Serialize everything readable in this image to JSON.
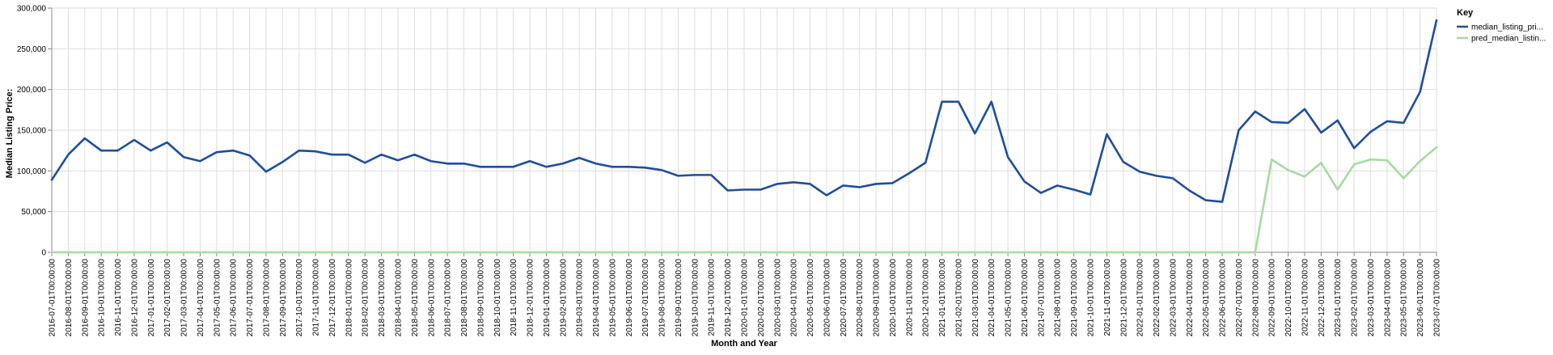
{
  "chart_data": {
    "type": "line",
    "xlabel": "Month and Year",
    "ylabel": "Median Listing Price:",
    "ylim": [
      0,
      300000
    ],
    "yticks": [
      0,
      50000,
      100000,
      150000,
      200000,
      250000,
      300000
    ],
    "ytick_labels": [
      "0",
      "50,000",
      "100,000",
      "150,000",
      "200,000",
      "250,000",
      "300,000"
    ],
    "grid": true,
    "legend": {
      "title": "Key",
      "placement": "top-right"
    },
    "x": [
      "2016-07-01T00:00:00",
      "2016-08-01T00:00:00",
      "2016-09-01T00:00:00",
      "2016-10-01T00:00:00",
      "2016-11-01T00:00:00",
      "2016-12-01T00:00:00",
      "2017-01-01T00:00:00",
      "2017-02-01T00:00:00",
      "2017-03-01T00:00:00",
      "2017-04-01T00:00:00",
      "2017-05-01T00:00:00",
      "2017-06-01T00:00:00",
      "2017-07-01T00:00:00",
      "2017-08-01T00:00:00",
      "2017-09-01T00:00:00",
      "2017-10-01T00:00:00",
      "2017-11-01T00:00:00",
      "2017-12-01T00:00:00",
      "2018-01-01T00:00:00",
      "2018-02-01T00:00:00",
      "2018-03-01T00:00:00",
      "2018-04-01T00:00:00",
      "2018-05-01T00:00:00",
      "2018-06-01T00:00:00",
      "2018-07-01T00:00:00",
      "2018-08-01T00:00:00",
      "2018-09-01T00:00:00",
      "2018-10-01T00:00:00",
      "2018-11-01T00:00:00",
      "2018-12-01T00:00:00",
      "2019-01-01T00:00:00",
      "2019-02-01T00:00:00",
      "2019-03-01T00:00:00",
      "2019-04-01T00:00:00",
      "2019-05-01T00:00:00",
      "2019-06-01T00:00:00",
      "2019-07-01T00:00:00",
      "2019-08-01T00:00:00",
      "2019-09-01T00:00:00",
      "2019-10-01T00:00:00",
      "2019-11-01T00:00:00",
      "2019-12-01T00:00:00",
      "2020-01-01T00:00:00",
      "2020-02-01T00:00:00",
      "2020-03-01T00:00:00",
      "2020-04-01T00:00:00",
      "2020-05-01T00:00:00",
      "2020-06-01T00:00:00",
      "2020-07-01T00:00:00",
      "2020-08-01T00:00:00",
      "2020-09-01T00:00:00",
      "2020-10-01T00:00:00",
      "2020-11-01T00:00:00",
      "2020-12-01T00:00:00",
      "2021-01-01T00:00:00",
      "2021-02-01T00:00:00",
      "2021-03-01T00:00:00",
      "2021-04-01T00:00:00",
      "2021-05-01T00:00:00",
      "2021-06-01T00:00:00",
      "2021-07-01T00:00:00",
      "2021-08-01T00:00:00",
      "2021-09-01T00:00:00",
      "2021-10-01T00:00:00",
      "2021-11-01T00:00:00",
      "2021-12-01T00:00:00",
      "2022-01-01T00:00:00",
      "2022-02-01T00:00:00",
      "2022-03-01T00:00:00",
      "2022-04-01T00:00:00",
      "2022-05-01T00:00:00",
      "2022-06-01T00:00:00",
      "2022-07-01T00:00:00",
      "2022-08-01T00:00:00",
      "2022-09-01T00:00:00",
      "2022-10-01T00:00:00",
      "2022-11-01T00:00:00",
      "2022-12-01T00:00:00",
      "2023-01-01T00:00:00",
      "2023-02-01T00:00:00",
      "2023-03-01T00:00:00",
      "2023-04-01T00:00:00",
      "2023-05-01T00:00:00",
      "2023-06-01T00:00:00",
      "2023-07-01T00:00:00"
    ],
    "series": [
      {
        "name": "median_listing_pri...",
        "color": "#1f4e9c",
        "values": [
          89000,
          120000,
          140000,
          125000,
          125000,
          138000,
          125000,
          135000,
          117000,
          112000,
          123000,
          125000,
          119000,
          99000,
          111000,
          125000,
          124000,
          120000,
          120000,
          110000,
          120000,
          113000,
          120000,
          112000,
          109000,
          109000,
          105000,
          105000,
          105000,
          112000,
          105000,
          109000,
          116000,
          109000,
          105000,
          105000,
          104000,
          101000,
          94000,
          95000,
          95000,
          76000,
          77000,
          77000,
          84000,
          86000,
          84000,
          70000,
          82000,
          80000,
          84000,
          85000,
          97000,
          110000,
          185000,
          185000,
          146000,
          185000,
          117000,
          87000,
          73000,
          82000,
          77000,
          71000,
          145000,
          111000,
          99000,
          94000,
          91000,
          76000,
          64000,
          62000,
          150000,
          173000,
          160000,
          159000,
          176000,
          147000,
          162000,
          128000,
          148000,
          161000,
          159000,
          197000,
          285000
        ]
      },
      {
        "name": "pred_median_listin...",
        "color": "#a6dba0",
        "values": [
          0,
          0,
          0,
          0,
          0,
          0,
          0,
          0,
          0,
          0,
          0,
          0,
          0,
          0,
          0,
          0,
          0,
          0,
          0,
          0,
          0,
          0,
          0,
          0,
          0,
          0,
          0,
          0,
          0,
          0,
          0,
          0,
          0,
          0,
          0,
          0,
          0,
          0,
          0,
          0,
          0,
          0,
          0,
          0,
          0,
          0,
          0,
          0,
          0,
          0,
          0,
          0,
          0,
          0,
          0,
          0,
          0,
          0,
          0,
          0,
          0,
          0,
          0,
          0,
          0,
          0,
          0,
          0,
          0,
          0,
          0,
          0,
          0,
          0,
          114000,
          101000,
          93000,
          110000,
          77000,
          108000,
          114000,
          113000,
          91000,
          112000,
          129000
        ]
      }
    ]
  }
}
